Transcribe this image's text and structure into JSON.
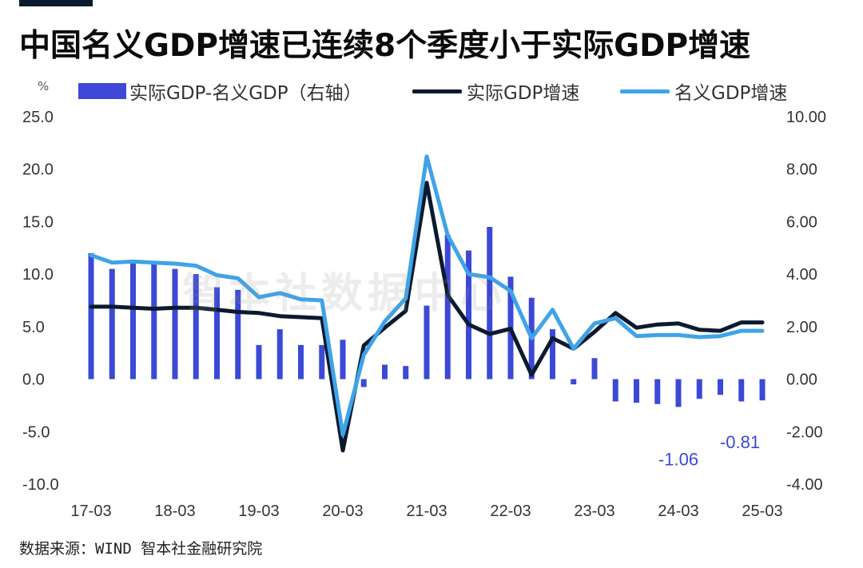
{
  "header": {
    "title": "中国名义GDP增速已连续8个季度小于实际GDP增速"
  },
  "unit_label": "%",
  "watermark": "智本社数据中心",
  "source": "数据来源：WIND 智本社金融研究院",
  "colors": {
    "bar": "#3b49d6",
    "real_line": "#0b1a2e",
    "nominal_line": "#3fa3e8",
    "title": "#0b0b0b"
  },
  "legend": {
    "bar_label": "实际GDP-名义GDP（右轴）",
    "real_label": "实际GDP增速",
    "nominal_label": "名义GDP增速"
  },
  "chart_data": {
    "type": "bar+line",
    "title": "中国名义GDP增速已连续8个季度小于实际GDP增速",
    "x_ticks": [
      "17-03",
      "18-03",
      "19-03",
      "20-03",
      "21-03",
      "22-03",
      "23-03",
      "24-03",
      "25-03"
    ],
    "left_axis": {
      "unit": "%",
      "range": [
        -10,
        25
      ],
      "ticks": [
        "25.0",
        "20.0",
        "15.0",
        "10.0",
        "5.0",
        "0.0",
        "-5.0",
        "-10.0"
      ],
      "tick_values": [
        25,
        20,
        15,
        10,
        5,
        0,
        -5,
        -10
      ]
    },
    "right_axis": {
      "range": [
        -4,
        10
      ],
      "ticks": [
        "10.00",
        "8.00",
        "6.00",
        "4.00",
        "2.00",
        "0.00",
        "-2.00",
        "-4.00"
      ],
      "tick_values": [
        10,
        8,
        6,
        4,
        2,
        0,
        -2,
        -4
      ]
    },
    "periods": [
      "17-03",
      "17-06",
      "17-09",
      "17-12",
      "18-03",
      "18-06",
      "18-09",
      "18-12",
      "19-03",
      "19-06",
      "19-09",
      "19-12",
      "20-03",
      "20-06",
      "20-09",
      "20-12",
      "21-03",
      "21-06",
      "21-09",
      "21-12",
      "22-03",
      "22-06",
      "22-09",
      "22-12",
      "23-03",
      "23-06",
      "23-09",
      "23-12",
      "24-03",
      "24-06",
      "24-09",
      "24-12",
      "25-03"
    ],
    "series": [
      {
        "name": "实际GDP-名义GDP（右轴）",
        "type": "bar",
        "axis": "right",
        "values": [
          4.8,
          4.2,
          4.4,
          4.4,
          4.2,
          4.0,
          3.5,
          3.4,
          1.3,
          1.9,
          1.3,
          1.3,
          1.5,
          -0.3,
          0.55,
          0.5,
          2.8,
          5.5,
          4.9,
          5.8,
          3.9,
          3.1,
          1.9,
          -0.2,
          0.8,
          -0.85,
          -0.9,
          -0.95,
          -1.06,
          -0.75,
          -0.6,
          -0.85,
          -0.81
        ]
      },
      {
        "name": "实际GDP增速",
        "type": "line",
        "axis": "left",
        "values": [
          6.9,
          6.9,
          6.8,
          6.7,
          6.8,
          6.8,
          6.6,
          6.4,
          6.3,
          6.0,
          5.9,
          5.8,
          -6.8,
          3.2,
          4.9,
          6.5,
          18.7,
          8.0,
          5.2,
          4.3,
          4.8,
          0.4,
          3.9,
          2.9,
          4.5,
          6.3,
          4.9,
          5.2,
          5.3,
          4.7,
          4.6,
          5.4,
          5.4
        ]
      },
      {
        "name": "名义GDP增速",
        "type": "line",
        "axis": "left",
        "values": [
          11.8,
          11.1,
          11.2,
          11.1,
          11.0,
          10.8,
          9.9,
          9.6,
          7.8,
          8.2,
          7.6,
          7.5,
          -5.3,
          2.3,
          5.5,
          7.7,
          21.2,
          13.7,
          10.0,
          9.7,
          8.4,
          3.9,
          6.6,
          2.9,
          5.3,
          5.8,
          4.1,
          4.2,
          4.2,
          4.0,
          4.1,
          4.6,
          4.6
        ]
      }
    ],
    "annotations": [
      {
        "text": "-1.06",
        "period": "24-03",
        "axis": "right",
        "value": -1.06
      },
      {
        "text": "-0.81",
        "period": "25-03",
        "axis": "right",
        "value": -0.81
      }
    ],
    "grid": false
  }
}
